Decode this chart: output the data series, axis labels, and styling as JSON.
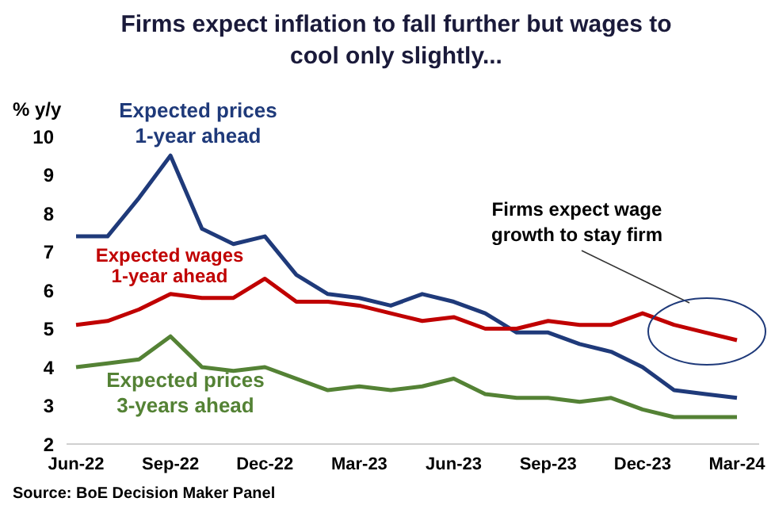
{
  "chart_data": {
    "type": "line",
    "title": "Firms expect inflation to fall further but wages to cool only slightly...",
    "ylabel": "% y/y",
    "categories": [
      "Jun-22",
      null,
      null,
      "Sep-22",
      null,
      null,
      "Dec-22",
      null,
      null,
      "Mar-23",
      null,
      null,
      "Jun-23",
      null,
      null,
      "Sep-23",
      null,
      null,
      "Dec-23",
      null,
      null,
      "Mar-24"
    ],
    "series": [
      {
        "name": "Expected prices\n1-year ahead",
        "color": "#1f3a7a",
        "values": [
          7.4,
          7.4,
          8.4,
          9.5,
          7.6,
          7.2,
          7.4,
          6.4,
          5.9,
          5.8,
          5.6,
          5.9,
          5.7,
          5.4,
          4.9,
          4.9,
          4.6,
          4.4,
          4.0,
          3.4,
          3.3,
          3.2
        ]
      },
      {
        "name": "Expected wages\n1-year ahead",
        "color": "#c00000",
        "values": [
          5.1,
          5.2,
          5.5,
          5.9,
          5.8,
          5.8,
          6.3,
          5.7,
          5.7,
          5.6,
          5.4,
          5.2,
          5.3,
          5.0,
          5.0,
          5.2,
          5.1,
          5.1,
          5.4,
          5.1,
          4.9,
          4.7
        ]
      },
      {
        "name": "Expected prices\n3-years ahead",
        "color": "#548235",
        "values": [
          4.0,
          4.1,
          4.2,
          4.8,
          4.0,
          3.9,
          4.0,
          3.7,
          3.4,
          3.5,
          3.4,
          3.5,
          3.7,
          3.3,
          3.2,
          3.2,
          3.1,
          3.2,
          2.9,
          2.7,
          2.7,
          2.7
        ]
      }
    ],
    "ylim": [
      2,
      10
    ],
    "yticks": [
      2,
      3,
      4,
      5,
      6,
      7,
      8,
      9,
      10
    ],
    "grid": false,
    "legend": false,
    "marker": "none",
    "line_style": "solid",
    "annotations": [
      "Firms expect wage growth to stay firm",
      "Source: BoE Decision Maker Panel"
    ]
  }
}
